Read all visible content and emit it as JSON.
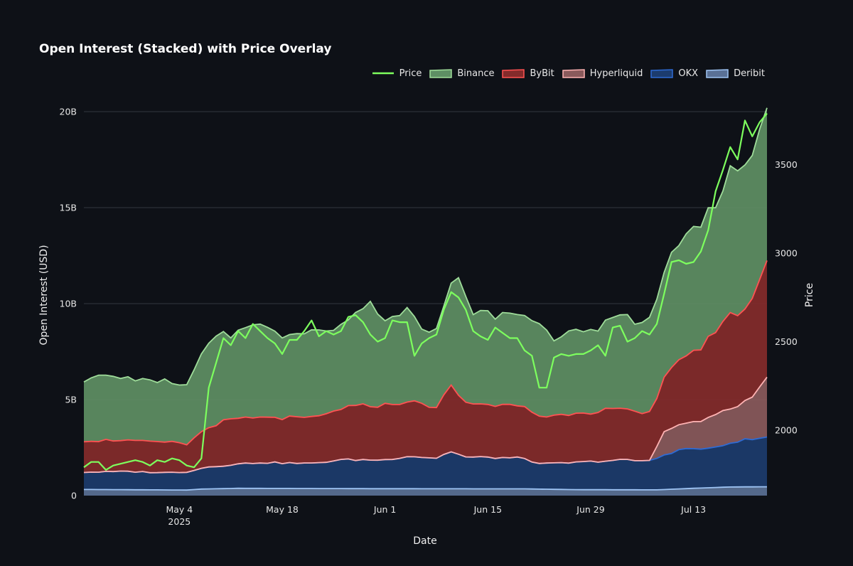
{
  "title": "Open Interest (Stacked) with Price Overlay",
  "legend": [
    {
      "name": "Price",
      "kind": "line",
      "color": "#7dff5e"
    },
    {
      "name": "Binance",
      "kind": "area",
      "color": "#5e8f64",
      "edge": "#9fdd9a"
    },
    {
      "name": "ByBit",
      "kind": "area",
      "color": "#842b2b",
      "edge": "#ff5252"
    },
    {
      "name": "Hyperliquid",
      "kind": "area",
      "color": "#8a5a5c",
      "edge": "#ffb3b3"
    },
    {
      "name": "OKX",
      "kind": "area",
      "color": "#1c3c6e",
      "edge": "#2e6bd4"
    },
    {
      "name": "Deribit",
      "kind": "area",
      "color": "#5a7196",
      "edge": "#9ec4f4"
    }
  ],
  "chart_data": {
    "type": "area",
    "title": "Open Interest (Stacked) with Price Overlay",
    "xlabel": "Date",
    "ylabel": "Open Interest (USD)",
    "y2label": "Price",
    "x_range": [
      "2025-04-21",
      "2025-07-23"
    ],
    "x_ticks": [
      {
        "date": "2025-05-04",
        "label": "May 4",
        "sublabel": "2025"
      },
      {
        "date": "2025-05-18",
        "label": "May 18"
      },
      {
        "date": "2025-06-01",
        "label": "Jun 1"
      },
      {
        "date": "2025-06-15",
        "label": "Jun 15"
      },
      {
        "date": "2025-06-29",
        "label": "Jun 29"
      },
      {
        "date": "2025-07-13",
        "label": "Jul 13"
      }
    ],
    "ylim": [
      0,
      20000000000
    ],
    "y_ticks": [
      {
        "value": 0,
        "label": "0"
      },
      {
        "value": 5000000000,
        "label": "5B"
      },
      {
        "value": 10000000000,
        "label": "10B"
      },
      {
        "value": 15000000000,
        "label": "15B"
      },
      {
        "value": 20000000000,
        "label": "20B"
      }
    ],
    "y2lim": [
      1630,
      3800
    ],
    "y2_ticks": [
      {
        "value": 2000,
        "label": "2000"
      },
      {
        "value": 2500,
        "label": "2500"
      },
      {
        "value": 3000,
        "label": "3000"
      },
      {
        "value": 3500,
        "label": "3500"
      }
    ],
    "grid": true,
    "legend_position": "top-right",
    "stack_order": [
      "Deribit",
      "OKX",
      "Hyperliquid",
      "ByBit",
      "Binance"
    ],
    "series": [
      {
        "name": "Deribit",
        "unit": "USD",
        "points": [
          [
            "2025-04-21",
            320000000.0
          ],
          [
            "2025-05-05",
            290000000.0
          ],
          [
            "2025-05-07",
            340000000.0
          ],
          [
            "2025-05-12",
            380000000.0
          ],
          [
            "2025-05-31",
            360000000.0
          ],
          [
            "2025-06-20",
            350000000.0
          ],
          [
            "2025-06-27",
            310000000.0
          ],
          [
            "2025-07-08",
            300000000.0
          ],
          [
            "2025-07-13",
            380000000.0
          ],
          [
            "2025-07-18",
            450000000.0
          ],
          [
            "2025-07-23",
            460000000.0
          ]
        ]
      },
      {
        "name": "OKX",
        "unit": "USD",
        "points": [
          [
            "2025-04-21",
            900000000.0
          ],
          [
            "2025-04-27",
            950000000.0
          ],
          [
            "2025-05-02",
            900000000.0
          ],
          [
            "2025-05-05",
            950000000.0
          ],
          [
            "2025-05-08",
            1150000000.0
          ],
          [
            "2025-05-15",
            1350000000.0
          ],
          [
            "2025-05-22",
            1300000000.0
          ],
          [
            "2025-05-26",
            1500000000.0
          ],
          [
            "2025-06-01",
            1500000000.0
          ],
          [
            "2025-06-04",
            1700000000.0
          ],
          [
            "2025-06-08",
            1600000000.0
          ],
          [
            "2025-06-10",
            1950000000.0
          ],
          [
            "2025-06-12",
            1650000000.0
          ],
          [
            "2025-06-20",
            1600000000.0
          ],
          [
            "2025-06-22",
            1300000000.0
          ],
          [
            "2025-07-03",
            1550000000.0
          ],
          [
            "2025-07-07",
            1500000000.0
          ],
          [
            "2025-07-09",
            1800000000.0
          ],
          [
            "2025-07-11",
            2050000000.0
          ],
          [
            "2025-07-16",
            2050000000.0
          ],
          [
            "2025-07-19",
            2400000000.0
          ],
          [
            "2025-07-23",
            2550000000.0
          ]
        ]
      },
      {
        "name": "Hyperliquid",
        "unit": "USD",
        "points": [
          [
            "2025-04-21",
            0
          ],
          [
            "2025-07-07",
            0
          ],
          [
            "2025-07-09",
            1250000000.0
          ],
          [
            "2025-07-11",
            1300000000.0
          ],
          [
            "2025-07-14",
            1400000000.0
          ],
          [
            "2025-07-16",
            1700000000.0
          ],
          [
            "2025-07-19",
            1900000000.0
          ],
          [
            "2025-07-21",
            2200000000.0
          ],
          [
            "2025-07-23",
            3100000000.0
          ]
        ]
      },
      {
        "name": "ByBit",
        "unit": "USD",
        "points": [
          [
            "2025-04-21",
            1650000000.0
          ],
          [
            "2025-04-29",
            1600000000.0
          ],
          [
            "2025-05-04",
            1550000000.0
          ],
          [
            "2025-05-05",
            1450000000.0
          ],
          [
            "2025-05-07",
            1900000000.0
          ],
          [
            "2025-05-10",
            2350000000.0
          ],
          [
            "2025-05-13",
            2350000000.0
          ],
          [
            "2025-05-22",
            2350000000.0
          ],
          [
            "2025-05-28",
            2800000000.0
          ],
          [
            "2025-06-04",
            2900000000.0
          ],
          [
            "2025-06-08",
            2650000000.0
          ],
          [
            "2025-06-10",
            3400000000.0
          ],
          [
            "2025-06-12",
            2800000000.0
          ],
          [
            "2025-06-15",
            2750000000.0
          ],
          [
            "2025-06-20",
            2750000000.0
          ],
          [
            "2025-06-23",
            2450000000.0
          ],
          [
            "2025-06-29",
            2450000000.0
          ],
          [
            "2025-07-02",
            2800000000.0
          ],
          [
            "2025-07-06",
            2500000000.0
          ],
          [
            "2025-07-08",
            2450000000.0
          ],
          [
            "2025-07-09",
            2750000000.0
          ],
          [
            "2025-07-11",
            3450000000.0
          ],
          [
            "2025-07-14",
            3800000000.0
          ],
          [
            "2025-07-16",
            4400000000.0
          ],
          [
            "2025-07-18",
            4900000000.0
          ],
          [
            "2025-07-20",
            4800000000.0
          ],
          [
            "2025-07-22",
            5500000000.0
          ],
          [
            "2025-07-23",
            6200000000.0
          ]
        ]
      },
      {
        "name": "Binance",
        "unit": "USD",
        "points": [
          [
            "2025-04-21",
            3200000000.0
          ],
          [
            "2025-04-22",
            3400000000.0
          ],
          [
            "2025-04-28",
            3200000000.0
          ],
          [
            "2025-04-30",
            3100000000.0
          ],
          [
            "2025-05-02",
            3200000000.0
          ],
          [
            "2025-05-04",
            3000000000.0
          ],
          [
            "2025-05-05",
            3050000000.0
          ],
          [
            "2025-05-07",
            4000000000.0
          ],
          [
            "2025-05-09",
            4600000000.0
          ],
          [
            "2025-05-11",
            4300000000.0
          ],
          [
            "2025-05-14",
            5000000000.0
          ],
          [
            "2025-05-17",
            4400000000.0
          ],
          [
            "2025-05-19",
            4300000000.0
          ],
          [
            "2025-05-22",
            4600000000.0
          ],
          [
            "2025-05-25",
            4200000000.0
          ],
          [
            "2025-05-28",
            4700000000.0
          ],
          [
            "2025-05-30",
            5500000000.0
          ],
          [
            "2025-06-01",
            4300000000.0
          ],
          [
            "2025-06-04",
            5000000000.0
          ],
          [
            "2025-06-06",
            4000000000.0
          ],
          [
            "2025-06-08",
            4100000000.0
          ],
          [
            "2025-06-10",
            5200000000.0
          ],
          [
            "2025-06-11",
            6000000000.0
          ],
          [
            "2025-06-13",
            4800000000.0
          ],
          [
            "2025-06-16",
            4700000000.0
          ],
          [
            "2025-06-19",
            4700000000.0
          ],
          [
            "2025-06-22",
            4900000000.0
          ],
          [
            "2025-06-24",
            4000000000.0
          ],
          [
            "2025-06-27",
            4400000000.0
          ],
          [
            "2025-06-30",
            4200000000.0
          ],
          [
            "2025-07-03",
            5000000000.0
          ],
          [
            "2025-07-05",
            4600000000.0
          ],
          [
            "2025-07-08",
            5300000000.0
          ],
          [
            "2025-07-10",
            6000000000.0
          ],
          [
            "2025-07-12",
            6300000000.0
          ],
          [
            "2025-07-14",
            6400000000.0
          ],
          [
            "2025-07-16",
            6600000000.0
          ],
          [
            "2025-07-18",
            7400000000.0
          ],
          [
            "2025-07-21",
            7200000000.0
          ],
          [
            "2025-07-23",
            8000000000.0
          ]
        ]
      },
      {
        "name": "Price",
        "unit": "price",
        "axis": "y2",
        "points": [
          [
            "2025-04-21",
            1790
          ],
          [
            "2025-04-22",
            1820
          ],
          [
            "2025-04-23",
            1820
          ],
          [
            "2025-04-24",
            1775
          ],
          [
            "2025-04-25",
            1800
          ],
          [
            "2025-04-26",
            1810
          ],
          [
            "2025-04-27",
            1820
          ],
          [
            "2025-04-28",
            1830
          ],
          [
            "2025-04-29",
            1820
          ],
          [
            "2025-04-30",
            1800
          ],
          [
            "2025-05-01",
            1830
          ],
          [
            "2025-05-02",
            1820
          ],
          [
            "2025-05-03",
            1840
          ],
          [
            "2025-05-04",
            1830
          ],
          [
            "2025-05-05",
            1800
          ],
          [
            "2025-05-06",
            1790
          ],
          [
            "2025-05-07",
            1840
          ],
          [
            "2025-05-08",
            2240
          ],
          [
            "2025-05-09",
            2380
          ],
          [
            "2025-05-10",
            2520
          ],
          [
            "2025-05-11",
            2480
          ],
          [
            "2025-05-12",
            2560
          ],
          [
            "2025-05-13",
            2520
          ],
          [
            "2025-05-14",
            2600
          ],
          [
            "2025-05-15",
            2560
          ],
          [
            "2025-05-16",
            2520
          ],
          [
            "2025-05-17",
            2490
          ],
          [
            "2025-05-18",
            2430
          ],
          [
            "2025-05-19",
            2510
          ],
          [
            "2025-05-20",
            2510
          ],
          [
            "2025-05-21",
            2560
          ],
          [
            "2025-05-22",
            2620
          ],
          [
            "2025-05-23",
            2530
          ],
          [
            "2025-05-24",
            2560
          ],
          [
            "2025-05-25",
            2540
          ],
          [
            "2025-05-26",
            2560
          ],
          [
            "2025-05-27",
            2640
          ],
          [
            "2025-05-28",
            2650
          ],
          [
            "2025-05-29",
            2610
          ],
          [
            "2025-05-30",
            2540
          ],
          [
            "2025-05-31",
            2500
          ],
          [
            "2025-06-01",
            2520
          ],
          [
            "2025-06-02",
            2620
          ],
          [
            "2025-06-03",
            2610
          ],
          [
            "2025-06-04",
            2610
          ],
          [
            "2025-06-05",
            2420
          ],
          [
            "2025-06-06",
            2490
          ],
          [
            "2025-06-07",
            2520
          ],
          [
            "2025-06-08",
            2540
          ],
          [
            "2025-06-09",
            2680
          ],
          [
            "2025-06-10",
            2780
          ],
          [
            "2025-06-11",
            2750
          ],
          [
            "2025-06-12",
            2680
          ],
          [
            "2025-06-13",
            2560
          ],
          [
            "2025-06-14",
            2530
          ],
          [
            "2025-06-15",
            2510
          ],
          [
            "2025-06-16",
            2580
          ],
          [
            "2025-06-17",
            2550
          ],
          [
            "2025-06-18",
            2520
          ],
          [
            "2025-06-19",
            2520
          ],
          [
            "2025-06-20",
            2450
          ],
          [
            "2025-06-21",
            2420
          ],
          [
            "2025-06-22",
            2240
          ],
          [
            "2025-06-23",
            2240
          ],
          [
            "2025-06-24",
            2410
          ],
          [
            "2025-06-25",
            2430
          ],
          [
            "2025-06-26",
            2420
          ],
          [
            "2025-06-27",
            2430
          ],
          [
            "2025-06-28",
            2430
          ],
          [
            "2025-06-29",
            2450
          ],
          [
            "2025-06-30",
            2480
          ],
          [
            "2025-07-01",
            2420
          ],
          [
            "2025-07-02",
            2580
          ],
          [
            "2025-07-03",
            2590
          ],
          [
            "2025-07-04",
            2500
          ],
          [
            "2025-07-05",
            2520
          ],
          [
            "2025-07-06",
            2560
          ],
          [
            "2025-07-07",
            2540
          ],
          [
            "2025-07-08",
            2600
          ],
          [
            "2025-07-09",
            2770
          ],
          [
            "2025-07-10",
            2950
          ],
          [
            "2025-07-11",
            2960
          ],
          [
            "2025-07-12",
            2940
          ],
          [
            "2025-07-13",
            2950
          ],
          [
            "2025-07-14",
            3010
          ],
          [
            "2025-07-15",
            3130
          ],
          [
            "2025-07-16",
            3350
          ],
          [
            "2025-07-17",
            3470
          ],
          [
            "2025-07-18",
            3600
          ],
          [
            "2025-07-19",
            3530
          ],
          [
            "2025-07-20",
            3750
          ],
          [
            "2025-07-21",
            3660
          ],
          [
            "2025-07-22",
            3740
          ],
          [
            "2025-07-23",
            3790
          ]
        ]
      }
    ]
  }
}
